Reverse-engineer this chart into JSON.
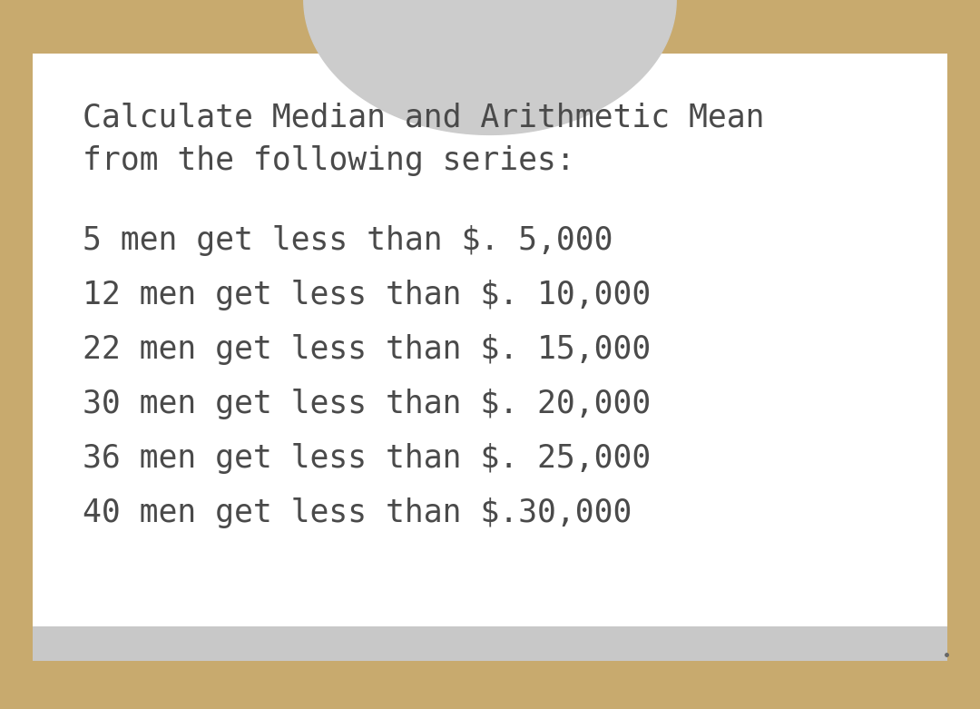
{
  "title_line1": "Calculate Median and Arithmetic Mean",
  "title_line2": "from the following series:",
  "data_lines": [
    "5 men get less than $. 5,000",
    "12 men get less than $. 10,000",
    "22 men get less than $. 15,000",
    "30 men get less than $. 20,000",
    "36 men get less than $. 25,000",
    "40 men get less than $.30,000"
  ],
  "bg_color": "#ffffff",
  "border_color": "#c8aa6e",
  "text_color": "#4a4a4a",
  "arc_color": "#cccccc",
  "bottom_bar_color": "#c8c8c8",
  "title_fontsize": 25,
  "data_fontsize": 25,
  "dot_color": "#666666"
}
